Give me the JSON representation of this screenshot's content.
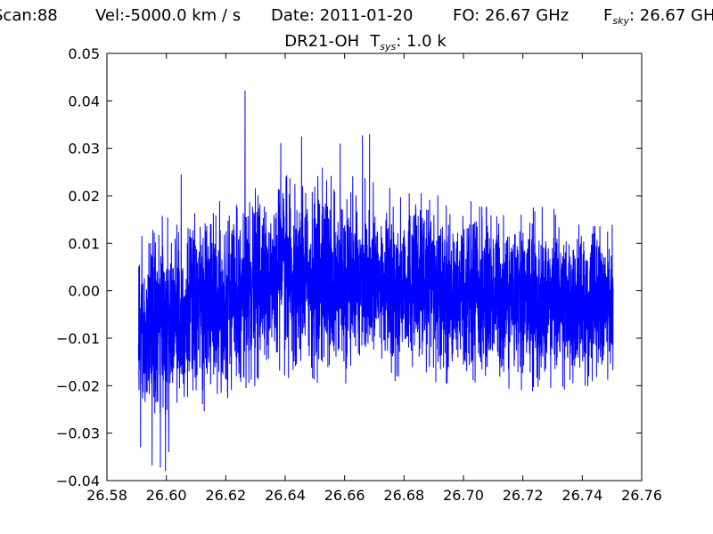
{
  "chart_data": {
    "type": "line",
    "title_line1": {
      "scan": "Scan:88",
      "vel": "Vel:-5000.0 km / s",
      "date": "Date: 2011-01-20",
      "fo": "FO: 26.67 GHz",
      "fsky_prefix": "F",
      "fsky_sub": "sky",
      "fsky_value": ": 26.67 GHz"
    },
    "title_line2": {
      "source": "DR21-OH",
      "tsys_prefix": "T",
      "tsys_sub": "sys",
      "tsys_value": ": 1.0 k"
    },
    "xlabel": "",
    "ylabel": "",
    "xlim": [
      26.58,
      26.76
    ],
    "ylim": [
      -0.04,
      0.05
    ],
    "x_ticks": [
      "26.58",
      "26.60",
      "26.62",
      "26.64",
      "26.66",
      "26.68",
      "26.70",
      "26.72",
      "26.74",
      "26.76"
    ],
    "y_ticks": [
      "−0.04",
      "−0.03",
      "−0.02",
      "−0.01",
      "0.00",
      "0.01",
      "0.02",
      "0.03",
      "0.04",
      "0.05"
    ],
    "series": [
      {
        "color": "#0000ff",
        "x_range": [
          26.5906,
          26.7504
        ],
        "envelope_x": [
          26.59,
          26.6,
          26.62,
          26.64,
          26.66,
          26.68,
          26.7,
          26.72,
          26.74,
          26.75
        ],
        "envelope_max": [
          0.013,
          0.017,
          0.02,
          0.025,
          0.025,
          0.022,
          0.02,
          0.018,
          0.017,
          0.014
        ],
        "envelope_min": [
          -0.03,
          -0.03,
          -0.023,
          -0.02,
          -0.02,
          -0.02,
          -0.02,
          -0.022,
          -0.022,
          -0.021
        ],
        "notable_peaks": [
          {
            "x": 26.6265,
            "y": 0.0422
          },
          {
            "x": 26.666,
            "y": 0.0327
          },
          {
            "x": 26.6455,
            "y": 0.0325
          },
          {
            "x": 26.6684,
            "y": 0.033
          },
          {
            "x": 26.6585,
            "y": 0.031
          },
          {
            "x": 26.6385,
            "y": 0.0311
          },
          {
            "x": 26.6525,
            "y": 0.0259
          },
          {
            "x": 26.605,
            "y": 0.0245
          }
        ],
        "notable_troughs": [
          {
            "x": 26.5997,
            "y": -0.038
          },
          {
            "x": 26.5952,
            "y": -0.0368
          },
          {
            "x": 26.598,
            "y": -0.0372
          },
          {
            "x": 26.6008,
            "y": -0.034
          },
          {
            "x": 26.5913,
            "y": -0.033
          }
        ]
      }
    ]
  }
}
